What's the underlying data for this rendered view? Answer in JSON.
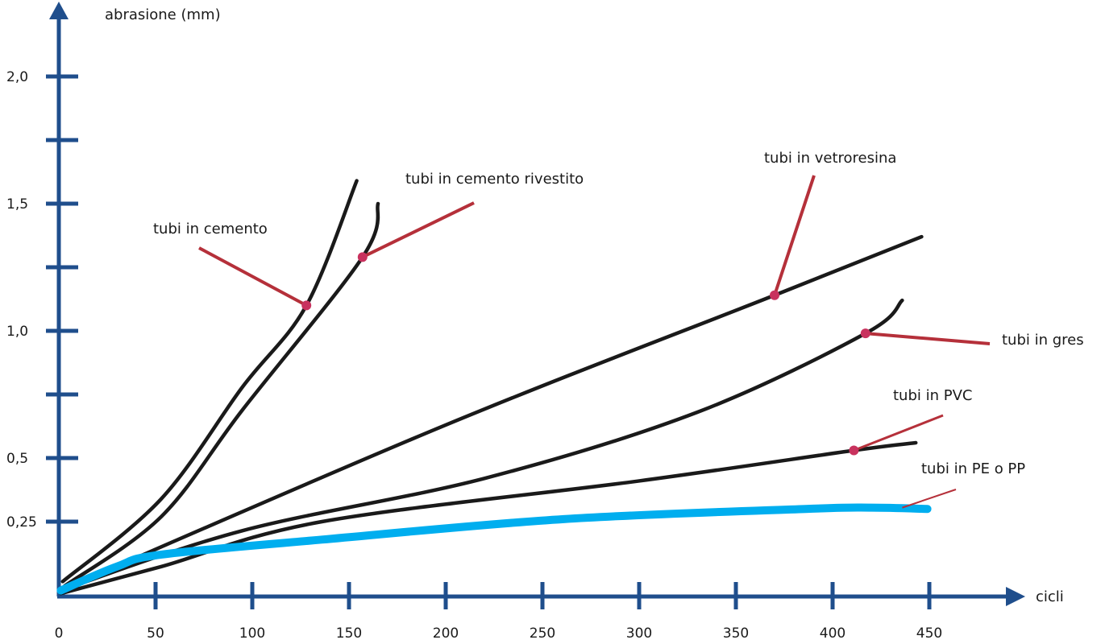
{
  "chart_data": {
    "type": "line",
    "title": "",
    "ylabel": "abrasione (mm)",
    "xlabel": "cicli",
    "xlim": [
      0,
      490
    ],
    "ylim": [
      0,
      2.1
    ],
    "x_ticks": [
      0,
      50,
      100,
      150,
      200,
      250,
      300,
      350,
      400,
      450
    ],
    "x_tick_labels": [
      "0",
      "50",
      "100",
      "150",
      "200",
      "250",
      "300",
      "350",
      "400",
      "450"
    ],
    "y_ticks": [
      0.25,
      0.5,
      0.75,
      1.0,
      1.25,
      1.5,
      1.75,
      2.0
    ],
    "y_tick_labels": [
      "0,25",
      "0,5",
      "",
      "1,0",
      "",
      "1,5",
      "",
      "2,0"
    ],
    "grid": false,
    "legend": "none (inline annotations)",
    "axis_color": "#1f4e8c",
    "series": [
      {
        "name": "tubi in cemento",
        "color": "#1a1a1a",
        "x": [
          2,
          53,
          95,
          128,
          154
        ],
        "y": [
          0.05,
          0.34,
          0.78,
          1.1,
          1.59
        ]
      },
      {
        "name": "tubi in cemento rivestito",
        "color": "#1a1a1a",
        "x": [
          3,
          53,
          95,
          157,
          165
        ],
        "y": [
          0.035,
          0.27,
          0.69,
          1.29,
          1.5
        ]
      },
      {
        "name": "tubi in vetroresina",
        "color": "#1a1a1a",
        "x": [
          1,
          200,
          370,
          446
        ],
        "y": [
          0.02,
          0.63,
          1.14,
          1.37
        ]
      },
      {
        "name": "tubi in gres",
        "color": "#1a1a1a",
        "x": [
          1,
          95,
          220,
          330,
          417,
          436
        ],
        "y": [
          0.02,
          0.22,
          0.42,
          0.68,
          0.99,
          1.12
        ]
      },
      {
        "name": "tubi in PVC",
        "color": "#1a1a1a",
        "x": [
          1,
          53,
          136,
          300,
          411,
          443
        ],
        "y": [
          0.01,
          0.1,
          0.25,
          0.41,
          0.53,
          0.56
        ]
      },
      {
        "name": "tubi in PE o PP",
        "color": "#00aeef",
        "x": [
          1,
          30,
          53,
          136,
          261,
          386,
          420,
          449
        ],
        "y": [
          0.02,
          0.1,
          0.14,
          0.19,
          0.26,
          0.3,
          0.305,
          0.3
        ]
      }
    ],
    "annotation_colors": {
      "leader": "#b5303a",
      "marker": "#c8325e"
    }
  }
}
